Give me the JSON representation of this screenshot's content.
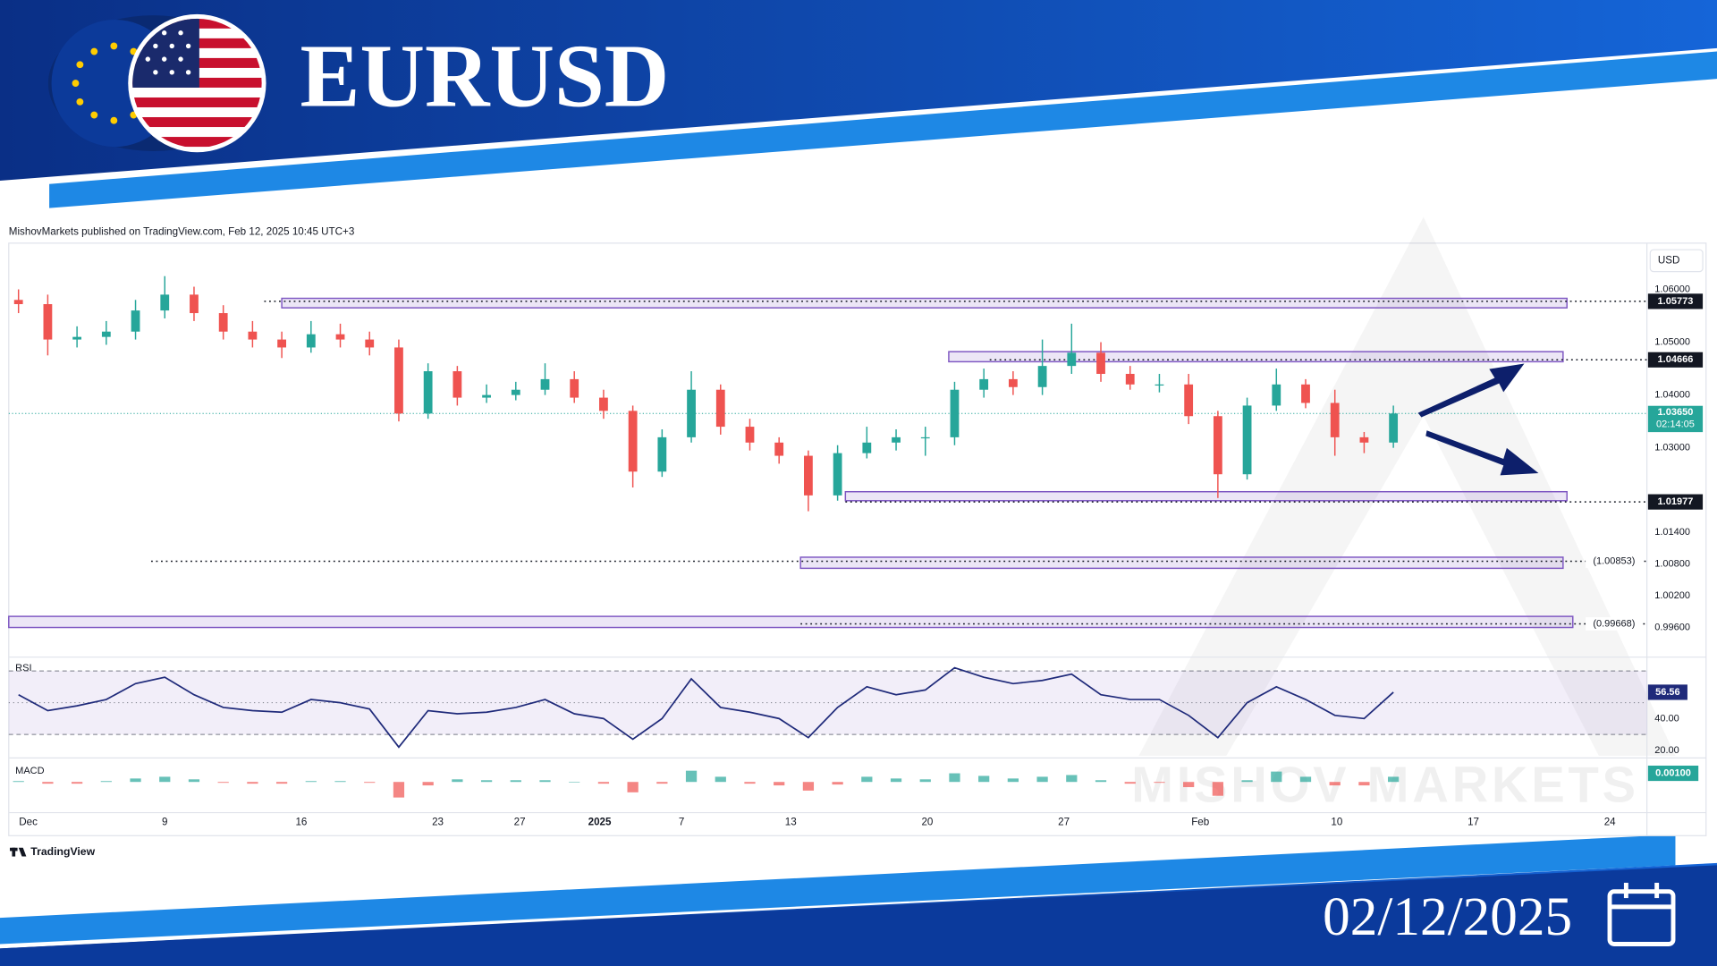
{
  "header": {
    "title": "EURUSD",
    "date": "02/12/2025"
  },
  "published": "MishovMarkets published on TradingView.com, Feb 12, 2025 10:45 UTC+3",
  "footer": "TradingView",
  "watermark": "MISHOV MARKETS",
  "chart_data": {
    "type": "candlestick",
    "currency": "USD",
    "up_color": "#26a69a",
    "down_color": "#ef5350",
    "xlim": [
      -1,
      83
    ],
    "ylim": [
      0.9908,
      1.0675
    ],
    "grid": false,
    "xticks": [
      {
        "value": 0,
        "label": "Dec"
      },
      {
        "value": 7,
        "label": "9"
      },
      {
        "value": 14,
        "label": "16"
      },
      {
        "value": 21,
        "label": "23"
      },
      {
        "value": 25.2,
        "label": "27"
      },
      {
        "value": 29.3,
        "label": "2025"
      },
      {
        "value": 33.5,
        "label": "7"
      },
      {
        "value": 39.1,
        "label": "13"
      },
      {
        "value": 46.1,
        "label": "20"
      },
      {
        "value": 53.1,
        "label": "27"
      },
      {
        "value": 60.1,
        "label": "Feb"
      },
      {
        "value": 67.1,
        "label": "10"
      },
      {
        "value": 74.1,
        "label": "17"
      },
      {
        "value": 81.1,
        "label": "24"
      }
    ],
    "yticks": [
      {
        "value": 1.06,
        "label": "1.06000"
      },
      {
        "value": 1.05,
        "label": "1.05000"
      },
      {
        "value": 1.04,
        "label": "1.04000"
      },
      {
        "value": 1.03,
        "label": "1.03000"
      },
      {
        "value": 1.014,
        "label": "1.01400"
      },
      {
        "value": 1.008,
        "label": "1.00800"
      },
      {
        "value": 1.002,
        "label": "1.00200"
      },
      {
        "value": 0.996,
        "label": "0.99600"
      }
    ],
    "x": [
      -0.5,
      1,
      2.5,
      4,
      5.5,
      7,
      8.5,
      10,
      11.5,
      13,
      14.5,
      16,
      17.5,
      19,
      20.5,
      22,
      23.5,
      25,
      26.5,
      28,
      29.5,
      31,
      32.5,
      34,
      35.5,
      37,
      38.5,
      40,
      41.5,
      43,
      44.5,
      46,
      47.5,
      49,
      50.5,
      52,
      53.5,
      55,
      56.5,
      58,
      59.5,
      61,
      62.5,
      64,
      65.5,
      67,
      68.5,
      70
    ],
    "open": [
      1.058,
      1.0572,
      1.0505,
      1.051,
      1.052,
      1.056,
      1.059,
      1.0555,
      1.052,
      1.0505,
      1.049,
      1.0515,
      1.0505,
      1.049,
      1.0365,
      1.0445,
      1.0395,
      1.04,
      1.041,
      1.043,
      1.0395,
      1.037,
      1.0255,
      1.032,
      1.041,
      1.034,
      1.031,
      1.0285,
      1.021,
      1.029,
      1.031,
      1.032,
      1.032,
      1.041,
      1.043,
      1.0415,
      1.0455,
      1.048,
      1.044,
      1.042,
      1.042,
      1.036,
      1.025,
      1.038,
      1.042,
      1.0385,
      1.032,
      1.031
    ],
    "high": [
      1.06,
      1.059,
      1.053,
      1.054,
      1.058,
      1.0625,
      1.0605,
      1.057,
      1.054,
      1.052,
      1.054,
      1.0535,
      1.052,
      1.0505,
      1.046,
      1.0455,
      1.042,
      1.0425,
      1.046,
      1.0445,
      1.041,
      1.038,
      1.0335,
      1.0445,
      1.042,
      1.0355,
      1.032,
      1.0295,
      1.0305,
      1.034,
      1.0335,
      1.034,
      1.0425,
      1.045,
      1.0445,
      1.0505,
      1.0535,
      1.05,
      1.0455,
      1.044,
      1.044,
      1.037,
      1.0395,
      1.045,
      1.043,
      1.041,
      1.033,
      1.038
    ],
    "low": [
      1.0555,
      1.0475,
      1.049,
      1.0495,
      1.0505,
      1.0545,
      1.054,
      1.0505,
      1.049,
      1.047,
      1.048,
      1.049,
      1.0475,
      1.035,
      1.0355,
      1.038,
      1.0385,
      1.039,
      1.04,
      1.0385,
      1.0355,
      1.0225,
      1.0245,
      1.031,
      1.0325,
      1.0295,
      1.027,
      1.018,
      1.02,
      1.028,
      1.0295,
      1.0285,
      1.0305,
      1.0395,
      1.04,
      1.04,
      1.044,
      1.0425,
      1.041,
      1.0405,
      1.0345,
      1.0205,
      1.024,
      1.037,
      1.0375,
      1.0285,
      1.029,
      1.03
    ],
    "close": [
      1.0572,
      1.0505,
      1.051,
      1.052,
      1.056,
      1.059,
      1.0555,
      1.052,
      1.0505,
      1.049,
      1.0515,
      1.0505,
      1.049,
      1.0365,
      1.0445,
      1.0395,
      1.04,
      1.041,
      1.043,
      1.0395,
      1.037,
      1.0255,
      1.032,
      1.041,
      1.034,
      1.031,
      1.0285,
      1.021,
      1.029,
      1.031,
      1.032,
      1.032,
      1.041,
      1.043,
      1.0415,
      1.0455,
      1.048,
      1.044,
      1.042,
      1.042,
      1.036,
      1.025,
      1.038,
      1.042,
      1.0385,
      1.032,
      1.031,
      1.0365
    ],
    "levels": [
      {
        "value": 1.05773,
        "label": "1.05773",
        "boxed": true,
        "line_from": 12.1,
        "zone_x": [
          13.0,
          78.9
        ],
        "zone_y": [
          1.0565,
          1.0583
        ]
      },
      {
        "value": 1.04666,
        "label": "1.04666",
        "boxed": true,
        "line_from": 49.3,
        "zone_x": [
          47.2,
          78.7
        ],
        "zone_y": [
          1.0463,
          1.0482
        ]
      },
      {
        "value": 1.01977,
        "label": "1.01977",
        "boxed": true,
        "line_from": 41.9,
        "zone_x": [
          41.9,
          78.9
        ],
        "zone_y": [
          1.02,
          1.0217
        ]
      },
      {
        "value": 1.00853,
        "label": "(1.00853)",
        "boxed": false,
        "line_from": 6.3,
        "zone_x": [
          39.6,
          78.7
        ],
        "zone_y": [
          1.0072,
          1.0093
        ]
      },
      {
        "value": 0.99668,
        "label": "(0.99668)",
        "boxed": false,
        "line_from": 39.6,
        "zone_x": [
          -1,
          79.2
        ],
        "zone_y": [
          0.996,
          0.9981
        ]
      }
    ],
    "zone_color": "#7e57c2",
    "last": {
      "value": 1.0365,
      "label": "1.03650",
      "countdown": "02:14:05",
      "color": "#26a69a"
    },
    "rsi": {
      "name": "RSI",
      "color": "#1f2a7a",
      "ylim": [
        16.6,
        76.6
      ],
      "band": [
        30,
        70
      ],
      "midline": 50,
      "yticks": [
        {
          "value": 40,
          "label": "40.00"
        },
        {
          "value": 20,
          "label": "20.00"
        }
      ],
      "values": [
        55,
        45,
        48,
        52,
        62,
        66,
        55,
        47,
        45,
        44,
        52,
        50,
        46,
        22,
        45,
        43,
        44,
        47,
        52,
        43,
        40,
        27,
        40,
        65,
        47,
        44,
        40,
        28,
        47,
        60,
        55,
        58,
        72,
        66,
        62,
        64,
        68,
        55,
        52,
        52,
        42,
        28,
        50,
        60,
        52,
        42,
        40,
        56.56
      ]
    },
    "macd": {
      "name": "MACD",
      "ylim": [
        -0.0033,
        0.0024
      ],
      "yticks": [
        {
          "value": 0.001,
          "label": "0.00100"
        }
      ],
      "values": [
        0.0001,
        -0.0002,
        -0.0002,
        0.0001,
        0.0004,
        0.0006,
        0.0003,
        -0.0001,
        -0.0002,
        -0.0002,
        0.0001,
        0.0001,
        -0.0001,
        -0.0018,
        -0.0004,
        0.0003,
        0.0002,
        0.0002,
        0.0002,
        0,
        -0.0002,
        -0.0012,
        -0.0002,
        0.0013,
        0.0006,
        -0.0002,
        -0.0004,
        -0.001,
        -0.0003,
        0.0006,
        0.0004,
        0.0003,
        0.001,
        0.0007,
        0.0004,
        0.0006,
        0.0008,
        0.0002,
        -0.0002,
        -0.0001,
        -0.0006,
        -0.0016,
        0.0002,
        0.0012,
        0.0006,
        -0.0004,
        -0.0004,
        0.0006
      ]
    }
  }
}
